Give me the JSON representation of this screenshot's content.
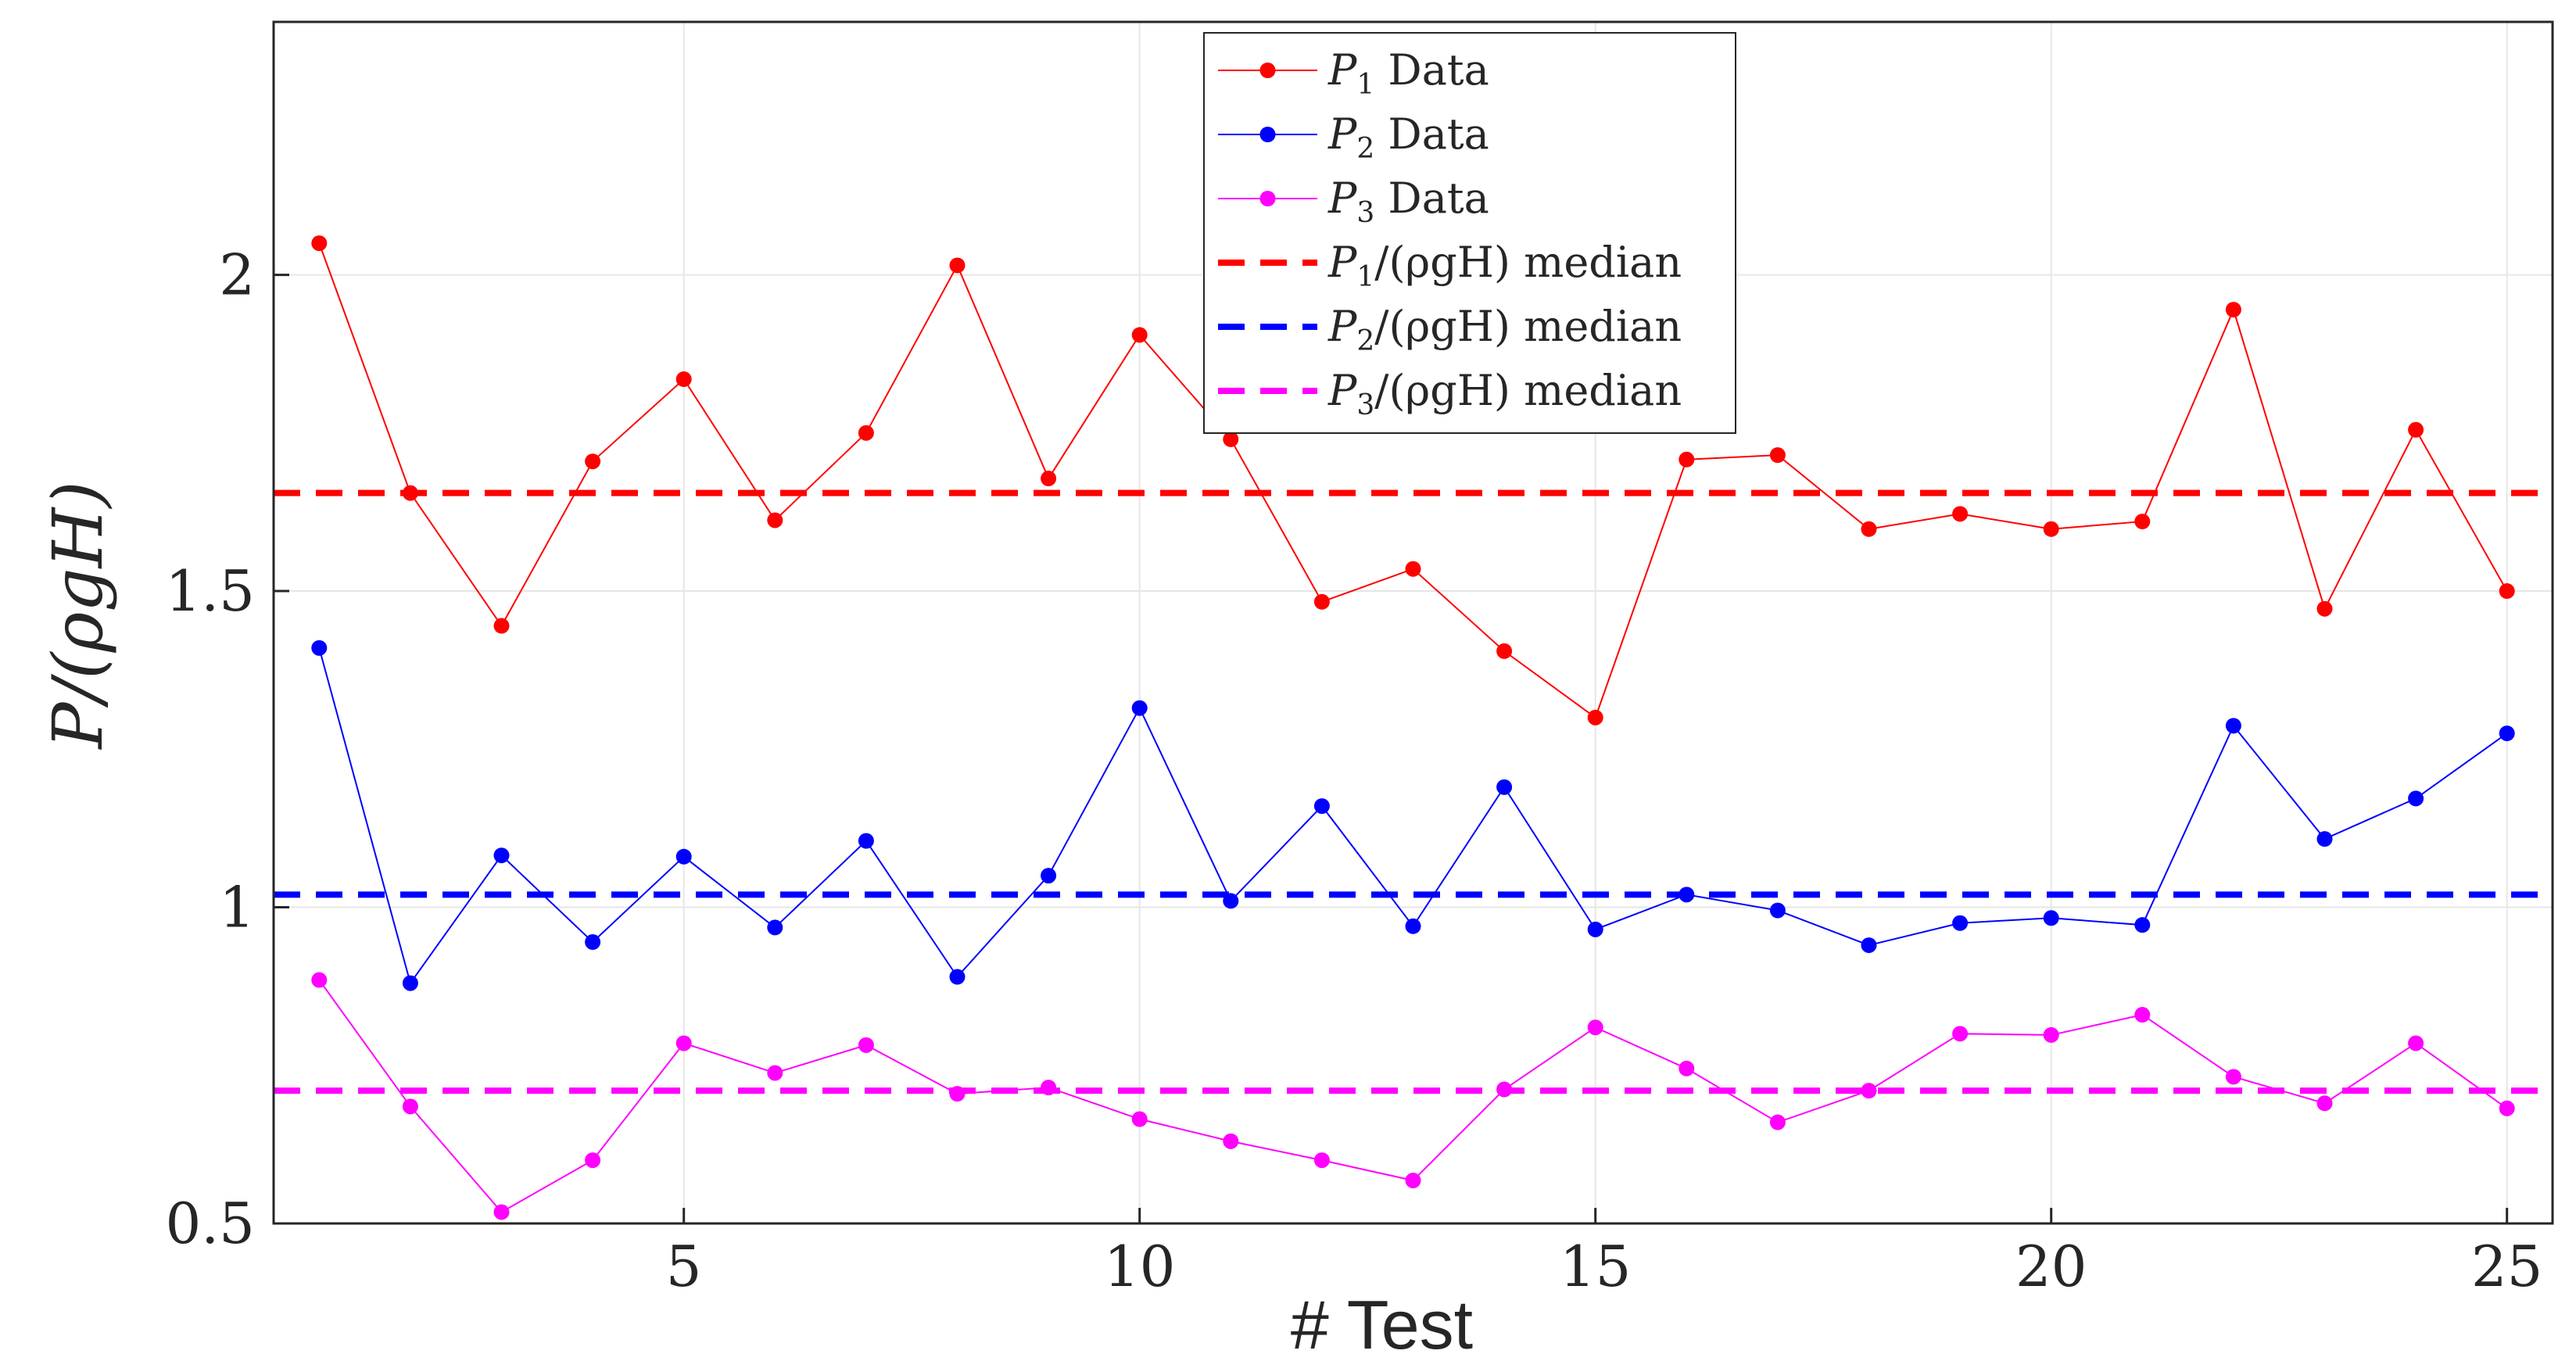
{
  "chart_data": {
    "type": "line",
    "xlabel": "# Test",
    "ylabel": "P/(ρgH)",
    "xlim": [
      0.5,
      25.5
    ],
    "ylim": [
      0.5,
      2.4
    ],
    "xticks": [
      5,
      10,
      15,
      20,
      25
    ],
    "yticks": [
      0.5,
      1,
      1.5,
      2
    ],
    "ytick_labels": [
      "0.5",
      "1",
      "1.5",
      "2"
    ],
    "xtick_labels": [
      "5",
      "10",
      "15",
      "20",
      "25"
    ],
    "grid": true,
    "legend_position": "top-center",
    "x": [
      1,
      2,
      3,
      4,
      5,
      6,
      7,
      8,
      9,
      10,
      11,
      12,
      13,
      14,
      15,
      16,
      17,
      18,
      19,
      20,
      21,
      22,
      23,
      24,
      25
    ],
    "series": [
      {
        "name": "P1 Data",
        "label_main": "P",
        "label_sub": "1",
        "label_rest": " Data",
        "color": "#ff0000",
        "values": [
          2.05,
          1.655,
          1.445,
          1.705,
          1.835,
          1.612,
          1.75,
          2.015,
          1.678,
          1.905,
          1.74,
          1.483,
          1.535,
          1.405,
          1.3,
          1.708,
          1.715,
          1.598,
          1.622,
          1.598,
          1.61,
          1.945,
          1.472,
          1.755,
          1.5
        ]
      },
      {
        "name": "P2 Data",
        "label_main": "P",
        "label_sub": "2",
        "label_rest": " Data",
        "color": "#0000ff",
        "values": [
          1.41,
          0.88,
          1.082,
          0.945,
          1.08,
          0.968,
          1.105,
          0.89,
          1.05,
          1.315,
          1.01,
          1.16,
          0.97,
          1.19,
          0.965,
          1.02,
          0.995,
          0.94,
          0.975,
          0.983,
          0.972,
          1.287,
          1.108,
          1.172,
          1.275
        ]
      },
      {
        "name": "P3 Data",
        "label_main": "P",
        "label_sub": "3",
        "label_rest": " Data",
        "color": "#ff00ff",
        "values": [
          0.885,
          0.685,
          0.518,
          0.6,
          0.785,
          0.738,
          0.782,
          0.705,
          0.715,
          0.665,
          0.63,
          0.6,
          0.568,
          0.712,
          0.81,
          0.745,
          0.66,
          0.71,
          0.8,
          0.798,
          0.83,
          0.732,
          0.69,
          0.785,
          0.682
        ]
      }
    ],
    "medians": [
      {
        "name": "P1/(ρgH) median",
        "label_main": "P",
        "label_sub": "1",
        "label_rest": "/(ρgH) median",
        "color": "#ff0000",
        "value": 1.655
      },
      {
        "name": "P2/(ρgH) median",
        "label_main": "P",
        "label_sub": "2",
        "label_rest": "/(ρgH) median",
        "color": "#0000ff",
        "value": 1.02
      },
      {
        "name": "P3/(ρgH) median",
        "label_main": "P",
        "label_sub": "3",
        "label_rest": "/(ρgH) median",
        "color": "#ff00ff",
        "value": 0.71
      }
    ]
  }
}
